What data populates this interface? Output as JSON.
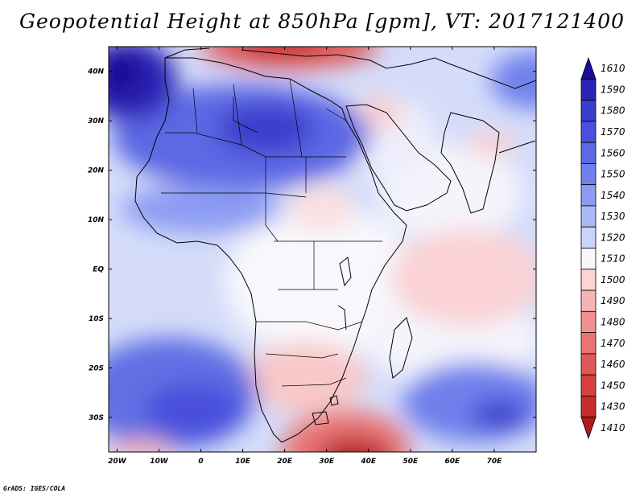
{
  "title": "Geopotential Height at 850hPa [gpm], VT: 2017121400",
  "credit": "GrADS: IGES/COLA",
  "map": {
    "lon_range": [
      -22,
      80
    ],
    "lat_range": [
      -37,
      45
    ],
    "lon_ticks": [
      "20W",
      "10W",
      "0",
      "10E",
      "20E",
      "30E",
      "40E",
      "50E",
      "60E",
      "70E"
    ],
    "lat_ticks": [
      "40N",
      "30N",
      "20N",
      "10N",
      "EQ",
      "10S",
      "20S",
      "30S"
    ],
    "lon_values": [
      -20,
      -10,
      0,
      10,
      20,
      30,
      40,
      50,
      60,
      70
    ],
    "lat_values": [
      40,
      30,
      20,
      10,
      0,
      -10,
      -20,
      -30
    ]
  },
  "colorbar": {
    "labels": [
      "1610",
      "1590",
      "1580",
      "1570",
      "1560",
      "1550",
      "1540",
      "1530",
      "1520",
      "1510",
      "1500",
      "1490",
      "1480",
      "1470",
      "1460",
      "1450",
      "1430",
      "1410"
    ],
    "colors": [
      "#1c0c96",
      "#2c24b4",
      "#3a3ccc",
      "#4a50dc",
      "#5c68e4",
      "#7080ec",
      "#8c9cf2",
      "#aab8f6",
      "#cad4fa",
      "#f6f6fc",
      "#fcd4d4",
      "#f6b4b4",
      "#f09090",
      "#e87474",
      "#e05858",
      "#d84040",
      "#c82c2c",
      "#b01c1c"
    ]
  }
}
